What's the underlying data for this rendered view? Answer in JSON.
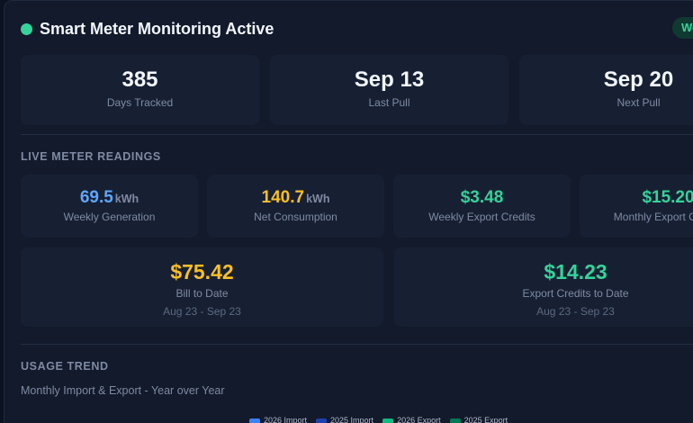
{
  "header": {
    "title": "Smart Meter Monitoring Active",
    "pill": "Weekly"
  },
  "stats": [
    {
      "value": "385",
      "label": "Days Tracked"
    },
    {
      "value": "Sep 13",
      "label": "Last Pull"
    },
    {
      "value": "Sep 20",
      "label": "Next Pull"
    }
  ],
  "live": {
    "title": "LIVE METER READINGS",
    "readings": [
      {
        "value": "69.5",
        "unit": "kWh",
        "label": "Weekly Generation",
        "color": "#60a5fa"
      },
      {
        "value": "140.7",
        "unit": "kWh",
        "label": "Net Consumption",
        "color": "#fbbf24"
      },
      {
        "value": "$3.48",
        "unit": "",
        "label": "Weekly Export Credits",
        "color": "#34d399"
      },
      {
        "value": "$15.20",
        "unit": "",
        "label": "Monthly Export Credits",
        "color": "#34d399"
      }
    ],
    "bill": {
      "value": "$75.42",
      "label": "Bill to Date",
      "range": "Aug 23 - Sep 23",
      "color": "#fbbf24"
    },
    "credits": {
      "value": "$14.23",
      "label": "Export Credits to Date",
      "range": "Aug 23 - Sep 23",
      "color": "#34d399"
    }
  },
  "trend": {
    "title": "USAGE TREND",
    "subtitle": "Monthly Import & Export - Year over Year",
    "legend": [
      {
        "label": "2026 Import",
        "color": "#3b82f6"
      },
      {
        "label": "2025 Import",
        "color": "#1e40af"
      },
      {
        "label": "2026 Export",
        "color": "#10b981"
      },
      {
        "label": "2025 Export",
        "color": "#047857"
      }
    ]
  }
}
